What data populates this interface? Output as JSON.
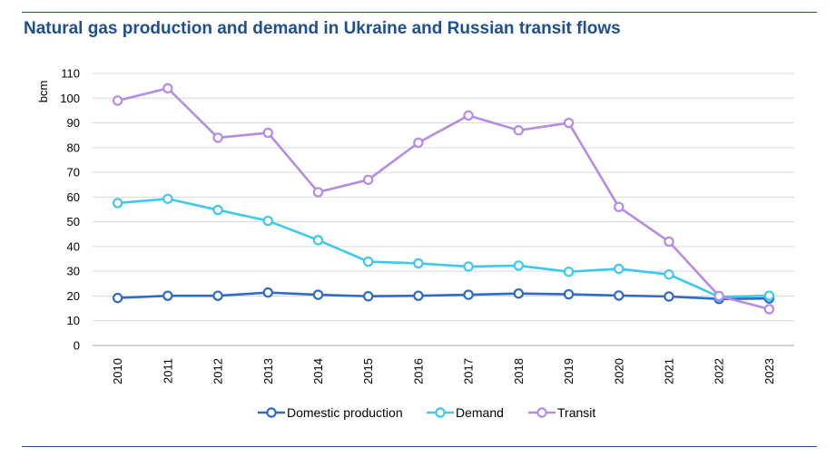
{
  "chart_data": {
    "type": "line",
    "title": "Natural gas production and demand in Ukraine and Russian transit flows",
    "xlabel": "",
    "ylabel": "bcm",
    "ylim": [
      0,
      110
    ],
    "yticks": [
      0,
      10,
      20,
      30,
      40,
      50,
      60,
      70,
      80,
      90,
      100,
      110
    ],
    "grid": true,
    "legend_position": "bottom",
    "categories": [
      "2010",
      "2011",
      "2012",
      "2013",
      "2014",
      "2015",
      "2016",
      "2017",
      "2018",
      "2019",
      "2020",
      "2021",
      "2022",
      "2023"
    ],
    "series": [
      {
        "name": "Domestic production",
        "color": "#2f6bc4",
        "values": [
          19.2,
          20.1,
          20.1,
          21.4,
          20.5,
          19.9,
          20.1,
          20.5,
          21.0,
          20.7,
          20.2,
          19.8,
          18.8,
          19.0
        ]
      },
      {
        "name": "Demand",
        "color": "#3ec8ee",
        "values": [
          57.6,
          59.3,
          54.8,
          50.4,
          42.6,
          33.9,
          33.2,
          31.9,
          32.3,
          29.8,
          31.0,
          28.7,
          19.7,
          20.1
        ]
      },
      {
        "name": "Transit",
        "color": "#b48ce6",
        "values": [
          99,
          104,
          84,
          86,
          62,
          67,
          82,
          93,
          87,
          90,
          56,
          42,
          20,
          14.7
        ]
      }
    ]
  }
}
